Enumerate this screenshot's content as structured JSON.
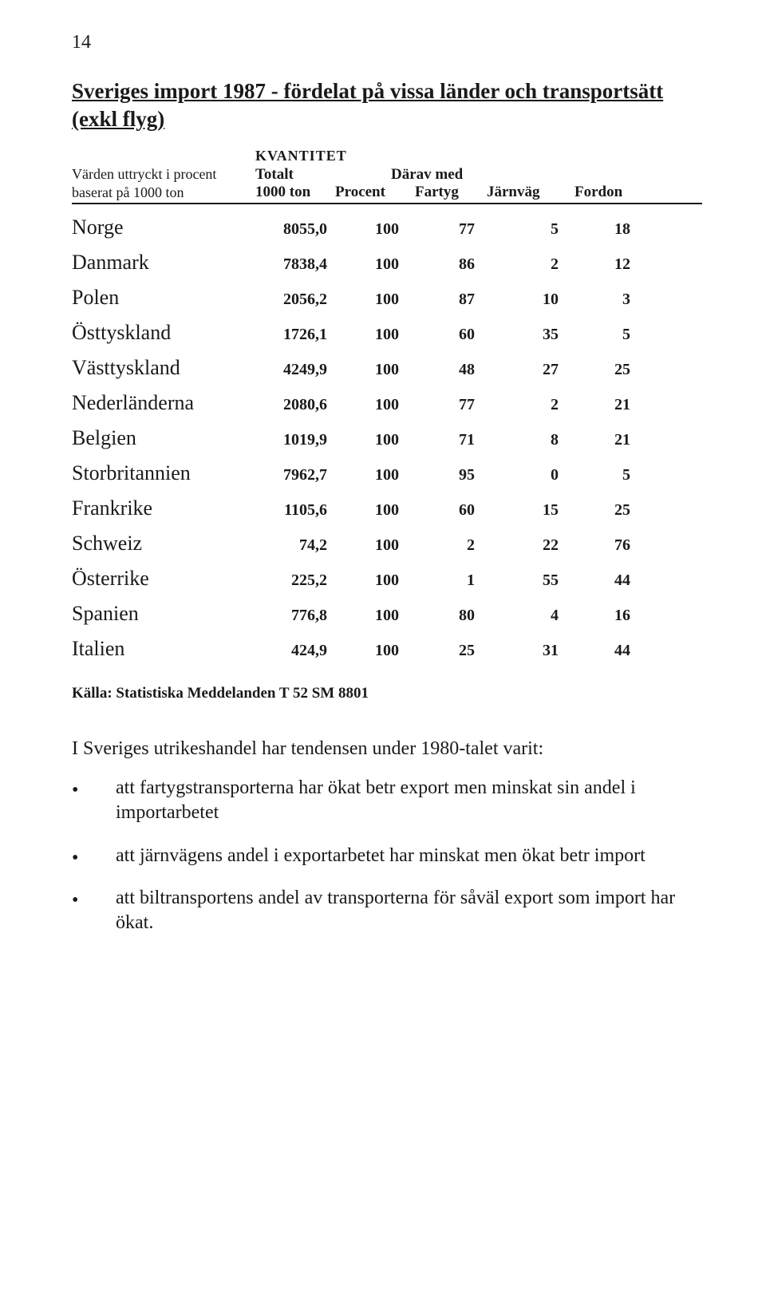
{
  "pageNumber": "14",
  "title": "Sveriges import 1987 - fördelat på vissa länder och transportsätt (exkl flyg)",
  "leftNote": {
    "line1": "Värden uttryckt i procent",
    "line2": "baserat på 1000 ton"
  },
  "header": {
    "kvantitet": "KVANTITET",
    "totalt": "Totalt",
    "daravMed": "Därav med",
    "ton": "1000 ton",
    "procent": "Procent",
    "fartyg": "Fartyg",
    "jarnvag": "Järnväg",
    "fordon": "Fordon"
  },
  "rows": [
    {
      "country": "Norge",
      "ton": "8055,0",
      "procent": "100",
      "fartyg": "77",
      "jarnvag": "5",
      "fordon": "18"
    },
    {
      "country": "Danmark",
      "ton": "7838,4",
      "procent": "100",
      "fartyg": "86",
      "jarnvag": "2",
      "fordon": "12"
    },
    {
      "country": "Polen",
      "ton": "2056,2",
      "procent": "100",
      "fartyg": "87",
      "jarnvag": "10",
      "fordon": "3"
    },
    {
      "country": "Östtyskland",
      "ton": "1726,1",
      "procent": "100",
      "fartyg": "60",
      "jarnvag": "35",
      "fordon": "5"
    },
    {
      "country": "Västtyskland",
      "ton": "4249,9",
      "procent": "100",
      "fartyg": "48",
      "jarnvag": "27",
      "fordon": "25"
    },
    {
      "country": "Nederländerna",
      "ton": "2080,6",
      "procent": "100",
      "fartyg": "77",
      "jarnvag": "2",
      "fordon": "21"
    },
    {
      "country": "Belgien",
      "ton": "1019,9",
      "procent": "100",
      "fartyg": "71",
      "jarnvag": "8",
      "fordon": "21"
    },
    {
      "country": "Storbritannien",
      "ton": "7962,7",
      "procent": "100",
      "fartyg": "95",
      "jarnvag": "0",
      "fordon": "5"
    },
    {
      "country": "Frankrike",
      "ton": "1105,6",
      "procent": "100",
      "fartyg": "60",
      "jarnvag": "15",
      "fordon": "25"
    },
    {
      "country": "Schweiz",
      "ton": "74,2",
      "procent": "100",
      "fartyg": "2",
      "jarnvag": "22",
      "fordon": "76"
    },
    {
      "country": "Österrike",
      "ton": "225,2",
      "procent": "100",
      "fartyg": "1",
      "jarnvag": "55",
      "fordon": "44"
    },
    {
      "country": "Spanien",
      "ton": "776,8",
      "procent": "100",
      "fartyg": "80",
      "jarnvag": "4",
      "fordon": "16"
    },
    {
      "country": "Italien",
      "ton": "424,9",
      "procent": "100",
      "fartyg": "25",
      "jarnvag": "31",
      "fordon": "44"
    }
  ],
  "source": "Källa: Statistiska Meddelanden T 52  SM 8801",
  "intro": "I Sveriges utrikeshandel har tendensen under 1980-talet varit:",
  "bullets": [
    "att fartygstransporterna har ökat betr export men minskat sin andel i importarbetet",
    "att järnvägens andel i exportarbetet har minskat men ökat betr import",
    "att biltransportens andel av transporterna för såväl export som import har ökat."
  ],
  "style": {
    "textColor": "#1a1a1a",
    "background": "#ffffff",
    "pageWidth": 960,
    "pageHeight": 1630,
    "bodyFontSize": 24,
    "tableFontSize": 20,
    "titleFontSize": 27
  }
}
